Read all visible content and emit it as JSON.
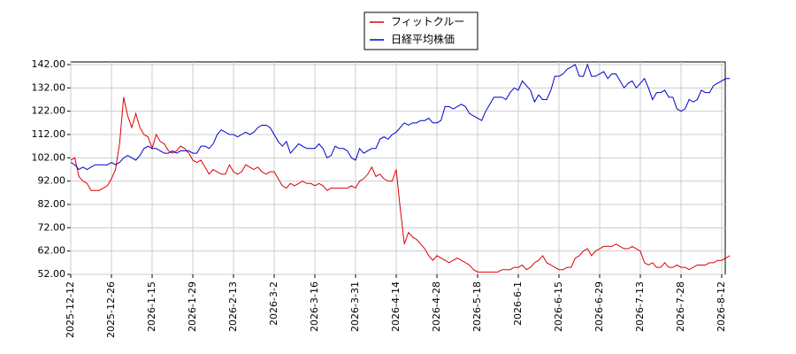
{
  "chart_data": {
    "type": "line",
    "categories": [
      "2025-12-12",
      null,
      null,
      null,
      null,
      null,
      null,
      null,
      null,
      null,
      "2025-12-26",
      null,
      null,
      null,
      null,
      null,
      null,
      null,
      null,
      null,
      "2026-1-15",
      null,
      null,
      null,
      null,
      null,
      null,
      null,
      null,
      null,
      "2026-1-29",
      null,
      null,
      null,
      null,
      null,
      null,
      null,
      null,
      null,
      "2026-2-13",
      null,
      null,
      null,
      null,
      null,
      null,
      null,
      null,
      null,
      "2026-3-2",
      null,
      null,
      null,
      null,
      null,
      null,
      null,
      null,
      null,
      "2026-3-16",
      null,
      null,
      null,
      null,
      null,
      null,
      null,
      null,
      null,
      "2026-3-31",
      null,
      null,
      null,
      null,
      null,
      null,
      null,
      null,
      null,
      "2026-4-14",
      null,
      null,
      null,
      null,
      null,
      null,
      null,
      null,
      null,
      "2026-4-28",
      null,
      null,
      null,
      null,
      null,
      null,
      null,
      null,
      null,
      "2026-5-18",
      null,
      null,
      null,
      null,
      null,
      null,
      null,
      null,
      null,
      "2026-6-1",
      null,
      null,
      null,
      null,
      null,
      null,
      null,
      null,
      null,
      "2026-6-15",
      null,
      null,
      null,
      null,
      null,
      null,
      null,
      null,
      null,
      "2026-6-29",
      null,
      null,
      null,
      null,
      null,
      null,
      null,
      null,
      null,
      "2026-7-13",
      null,
      null,
      null,
      null,
      null,
      null,
      null,
      null,
      null,
      "2026-7-28",
      null,
      null,
      null,
      null,
      null,
      null,
      null,
      null,
      null,
      "2026-8-12",
      null,
      null
    ],
    "series": [
      {
        "name": "フィットクルー",
        "color": "#dd0000",
        "values": [
          101,
          102,
          94,
          92,
          91,
          88,
          88,
          88,
          89,
          90,
          93,
          97,
          108,
          128,
          120,
          115,
          121,
          115,
          112,
          111,
          106,
          112,
          109,
          108,
          105,
          104,
          105,
          107,
          106,
          104,
          101,
          100,
          101,
          98,
          95,
          97,
          96,
          95,
          95,
          99,
          96,
          95,
          96,
          99,
          98,
          97,
          98,
          96,
          95,
          96,
          96,
          93,
          90,
          89,
          91,
          90,
          91,
          92,
          91,
          91,
          90,
          91,
          90,
          88,
          89,
          89,
          89,
          89,
          89,
          90,
          89,
          92,
          93,
          95,
          98,
          94,
          95,
          93,
          92,
          92,
          97,
          80,
          65,
          70,
          68,
          67,
          65,
          63,
          60,
          58,
          60,
          59,
          58,
          57,
          58,
          59,
          58,
          57,
          56,
          54,
          53,
          53,
          53,
          53,
          53,
          53,
          54,
          54,
          54,
          55,
          55,
          56,
          54,
          55,
          57,
          58,
          60,
          57,
          56,
          55,
          54,
          54,
          55,
          55,
          59,
          60,
          62,
          63,
          60,
          62,
          63,
          64,
          64,
          64,
          65,
          64,
          63,
          63,
          64,
          63,
          62,
          57,
          56,
          57,
          55,
          55,
          57,
          55,
          55,
          56,
          55,
          55,
          54,
          55,
          56,
          56,
          56,
          57,
          57,
          58,
          58,
          59,
          60
        ]
      },
      {
        "name": "日経平均株価",
        "color": "#0000cc",
        "values": [
          100,
          99,
          97,
          98,
          97,
          98,
          99,
          99,
          99,
          99,
          100,
          99,
          100,
          102,
          103,
          102,
          101,
          103,
          106,
          107,
          106,
          106,
          105,
          104,
          104,
          105,
          104,
          105,
          105,
          105,
          104,
          104,
          107,
          107,
          106,
          108,
          112,
          114,
          113,
          112,
          112,
          111,
          112,
          113,
          112,
          113,
          115,
          116,
          116,
          115,
          112,
          109,
          107,
          109,
          104,
          106,
          108,
          107,
          106,
          106,
          106,
          108,
          106,
          102,
          103,
          107,
          106,
          106,
          105,
          102,
          101,
          106,
          104,
          105,
          106,
          106,
          110,
          111,
          110,
          112,
          113,
          115,
          117,
          116,
          117,
          117,
          118,
          118,
          119,
          117,
          117,
          118,
          124,
          124,
          123,
          124,
          125,
          124,
          121,
          120,
          119,
          118,
          122,
          125,
          128,
          128,
          128,
          127,
          130,
          132,
          131,
          135,
          133,
          131,
          126,
          129,
          127,
          127,
          131,
          137,
          137,
          138,
          140,
          141,
          142,
          137,
          137,
          142,
          137,
          137,
          138,
          139,
          136,
          138,
          138,
          135,
          132,
          134,
          135,
          132,
          134,
          136,
          132,
          127,
          130,
          130,
          131,
          128,
          128,
          123,
          122,
          123,
          127,
          126,
          127,
          131,
          130,
          130,
          133,
          134,
          135,
          136,
          136
        ]
      }
    ],
    "ylim": [
      52,
      142
    ],
    "yticks": [
      {
        "value": 52,
        "label": "52.00"
      },
      {
        "value": 62,
        "label": "62.00"
      },
      {
        "value": 72,
        "label": "72.00"
      },
      {
        "value": 82,
        "label": "82.00"
      },
      {
        "value": 92,
        "label": "92.00"
      },
      {
        "value": 102,
        "label": "102.00"
      },
      {
        "value": 112,
        "label": "112.00"
      },
      {
        "value": 122,
        "label": "122.00"
      },
      {
        "value": 132,
        "label": "132.00"
      },
      {
        "value": 142,
        "label": "142.00"
      }
    ],
    "grid": true,
    "legend": "top"
  }
}
